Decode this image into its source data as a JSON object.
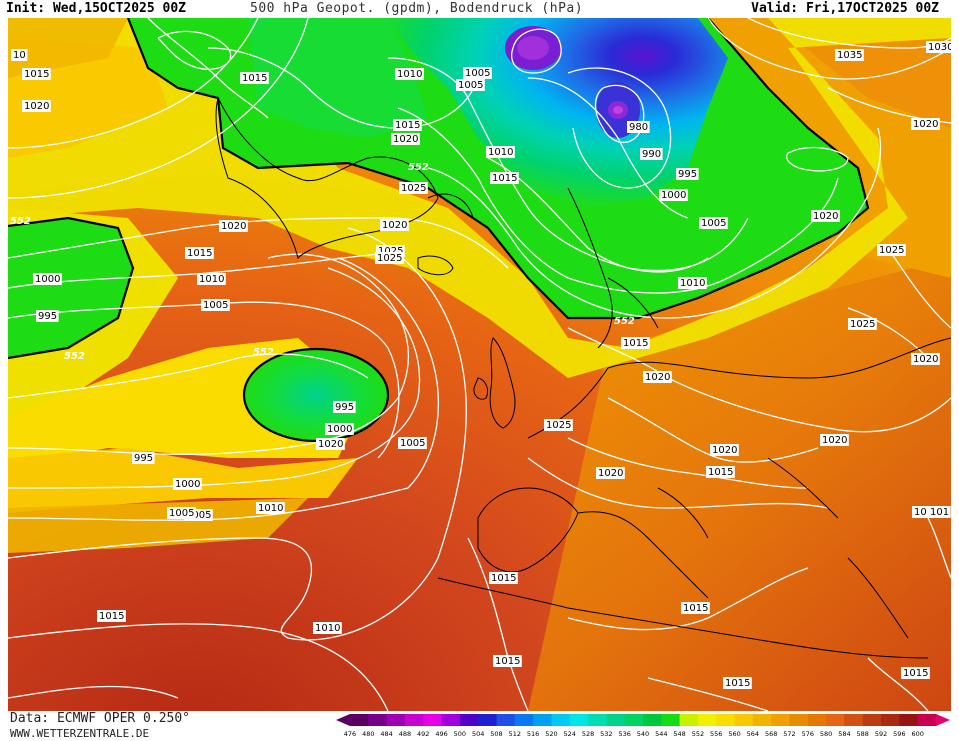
{
  "header": {
    "init": "Init: Wed,15OCT2025 00Z",
    "title": "500 hPa Geopot. (gpdm), Bodendruck (hPa)",
    "valid": "Valid: Fri,17OCT2025 00Z"
  },
  "footer": {
    "data_source": "Data: ECMWF OPER 0.250°",
    "website": "WWW.WETTERZENTRALE.DE"
  },
  "colorbar": {
    "values": [
      476,
      480,
      484,
      488,
      492,
      496,
      500,
      504,
      508,
      512,
      516,
      520,
      524,
      528,
      532,
      536,
      540,
      544,
      548,
      552,
      556,
      560,
      564,
      568,
      572,
      576,
      580,
      584,
      588,
      592,
      596,
      600
    ],
    "colors": [
      "#5a0060",
      "#78008a",
      "#a000b4",
      "#c800d2",
      "#e600e6",
      "#a000dc",
      "#5000c8",
      "#2020d2",
      "#1e50e6",
      "#0a78f0",
      "#00a0f0",
      "#00c8f0",
      "#00e6e6",
      "#00dcb4",
      "#00d28c",
      "#00d264",
      "#00c83c",
      "#14dc14",
      "#c8f000",
      "#f0f000",
      "#fadc00",
      "#fac800",
      "#f0b400",
      "#f0a000",
      "#e68c00",
      "#e67800",
      "#e66414",
      "#d25014",
      "#be3c14",
      "#aa2814",
      "#961414",
      "#c80050"
    ]
  },
  "pressure_labels": [
    "1015",
    "1020",
    "1030",
    "1035",
    "1025",
    "1010",
    "1005",
    "1000",
    "995",
    "990",
    "980",
    "1010",
    "1015"
  ],
  "geopotential_labels": [
    "552",
    "552",
    "552",
    "552",
    "552"
  ],
  "map_labels": [
    {
      "t": "1015"
    },
    {
      "t": "1020"
    },
    {
      "t": "1015"
    },
    {
      "t": "1010"
    },
    {
      "t": "1005"
    },
    {
      "t": "1005"
    },
    {
      "t": "1015"
    },
    {
      "t": "1020"
    },
    {
      "t": "1025"
    },
    {
      "t": "1020"
    },
    {
      "t": "1020"
    },
    {
      "t": "1035"
    },
    {
      "t": "1030"
    },
    {
      "t": "1020"
    },
    {
      "t": "980"
    },
    {
      "t": "990"
    },
    {
      "t": "995"
    },
    {
      "t": "1000"
    },
    {
      "t": "1010"
    },
    {
      "t": "1015"
    },
    {
      "t": "1005"
    },
    {
      "t": "1020"
    },
    {
      "t": "1025"
    },
    {
      "t": "1020"
    },
    {
      "t": "1015"
    },
    {
      "t": "1010"
    },
    {
      "t": "1005"
    },
    {
      "t": "1000"
    },
    {
      "t": "995"
    },
    {
      "t": "995"
    },
    {
      "t": "1000"
    },
    {
      "t": "1005"
    },
    {
      "t": "1025"
    },
    {
      "t": "1010"
    },
    {
      "t": "1025"
    },
    {
      "t": "1015"
    },
    {
      "t": "1020"
    },
    {
      "t": "1025"
    },
    {
      "t": "1020"
    },
    {
      "t": "1015"
    },
    {
      "t": "1020"
    },
    {
      "t": "1025"
    },
    {
      "t": "1020"
    },
    {
      "t": "1020"
    },
    {
      "t": "1005"
    },
    {
      "t": "995"
    },
    {
      "t": "1000"
    },
    {
      "t": "1005"
    },
    {
      "t": "1010"
    },
    {
      "t": "1015"
    },
    {
      "t": "1015"
    },
    {
      "t": "1015"
    },
    {
      "t": "1010"
    },
    {
      "t": "1015"
    },
    {
      "t": "1015"
    },
    {
      "t": "1015"
    },
    {
      "t": "1015"
    },
    {
      "t": "101"
    },
    {
      "t": "10"
    }
  ],
  "geo_labels": [
    {
      "t": "552"
    },
    {
      "t": "552"
    },
    {
      "t": "552"
    },
    {
      "t": "552"
    },
    {
      "t": "552"
    }
  ]
}
